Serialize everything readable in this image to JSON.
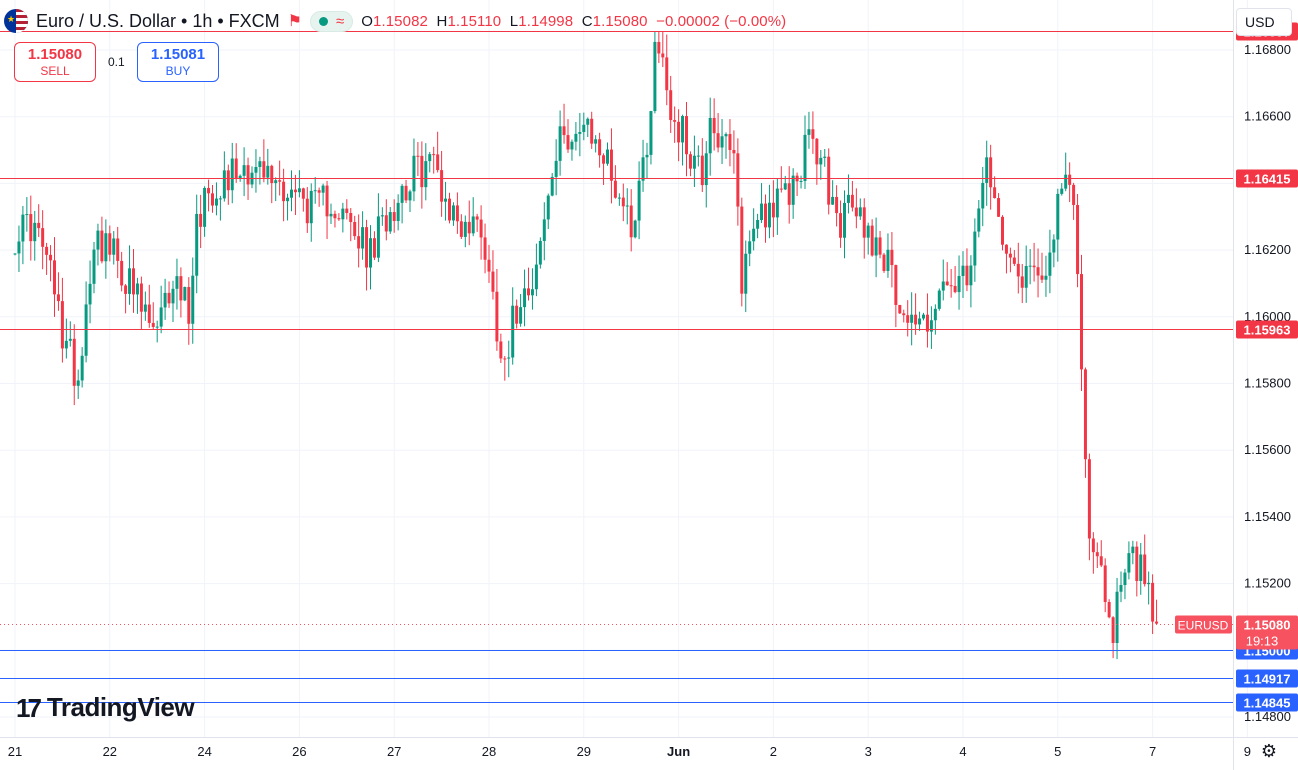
{
  "header": {
    "title": "Euro / U.S. Dollar • 1h • FXCM",
    "flag_icon": "eur-usd-flag-icon",
    "indicator_symbol": "≈",
    "ohlc": {
      "o_label": "O",
      "o_value": "1.15082",
      "h_label": "H",
      "h_value": "1.15110",
      "l_label": "L",
      "l_value": "1.14998",
      "c_label": "C",
      "c_value": "1.15080",
      "change": "−0.00002 (−0.00%)"
    }
  },
  "trade": {
    "sell_price": "1.15080",
    "sell_label": "SELL",
    "buy_price": "1.15081",
    "buy_label": "BUY",
    "spread": "0.1"
  },
  "currency": "USD",
  "logo_text": "TradingView",
  "colors": {
    "up": "#089981",
    "down": "#f23645",
    "resistance": "#f23645",
    "support": "#2962ff",
    "last_price": "#f7525f",
    "grid": "#f0f3fa",
    "axis_text": "#131722"
  },
  "chart_data": {
    "type": "candlestick",
    "title": "Euro / U.S. Dollar • 1h • FXCM",
    "ylim": [
      1.1474,
      1.1695
    ],
    "grid": true,
    "y_ticks": [
      "1.14800",
      "1.15000",
      "1.15200",
      "1.15400",
      "1.15600",
      "1.15800",
      "1.16000",
      "1.16200",
      "1.16400",
      "1.16600",
      "1.16800"
    ],
    "x_ticks": [
      {
        "label": "21",
        "t": 0
      },
      {
        "label": "22",
        "t": 24
      },
      {
        "label": "24",
        "t": 48
      },
      {
        "label": "26",
        "t": 72
      },
      {
        "label": "27",
        "t": 96
      },
      {
        "label": "28",
        "t": 120
      },
      {
        "label": "29",
        "t": 144
      },
      {
        "label": "Jun",
        "t": 168
      },
      {
        "label": "2",
        "t": 192
      },
      {
        "label": "3",
        "t": 216
      },
      {
        "label": "4",
        "t": 240
      },
      {
        "label": "5",
        "t": 264
      },
      {
        "label": "7",
        "t": 288
      },
      {
        "label": "9",
        "t": 312
      }
    ],
    "horizontal_levels": [
      {
        "price": 1.16857,
        "label": "1.16857",
        "kind": "resistance"
      },
      {
        "price": 1.16415,
        "label": "1.16415",
        "kind": "resistance"
      },
      {
        "price": 1.15963,
        "label": "1.15963",
        "kind": "resistance"
      },
      {
        "price": 1.15,
        "label": "1.15000",
        "kind": "support"
      },
      {
        "price": 1.14917,
        "label": "1.14917",
        "kind": "support"
      },
      {
        "price": 1.14845,
        "label": "1.14845",
        "kind": "support"
      }
    ],
    "last_price": {
      "symbol": "EURUSD",
      "price": 1.1508,
      "label": "1.15080",
      "countdown": "19:13"
    },
    "anchors": [
      [
        0,
        1.1625
      ],
      [
        4,
        1.1628
      ],
      [
        8,
        1.1618
      ],
      [
        12,
        1.1595
      ],
      [
        16,
        1.1582
      ],
      [
        20,
        1.1625
      ],
      [
        24,
        1.162
      ],
      [
        28,
        1.1612
      ],
      [
        32,
        1.1602
      ],
      [
        36,
        1.1594
      ],
      [
        40,
        1.1612
      ],
      [
        44,
        1.1603
      ],
      [
        46,
        1.1628
      ],
      [
        48,
        1.1637
      ],
      [
        52,
        1.1641
      ],
      [
        58,
        1.1646
      ],
      [
        64,
        1.1642
      ],
      [
        70,
        1.1638
      ],
      [
        76,
        1.1632
      ],
      [
        80,
        1.1636
      ],
      [
        86,
        1.1624
      ],
      [
        90,
        1.1618
      ],
      [
        94,
        1.1631
      ],
      [
        100,
        1.1642
      ],
      [
        106,
        1.1647
      ],
      [
        110,
        1.1632
      ],
      [
        114,
        1.1627
      ],
      [
        118,
        1.1628
      ],
      [
        122,
        1.1598
      ],
      [
        124,
        1.1588
      ],
      [
        128,
        1.1608
      ],
      [
        132,
        1.1615
      ],
      [
        136,
        1.1642
      ],
      [
        139,
        1.1656
      ],
      [
        144,
        1.1655
      ],
      [
        148,
        1.1651
      ],
      [
        152,
        1.164
      ],
      [
        156,
        1.1628
      ],
      [
        160,
        1.1652
      ],
      [
        162,
        1.1681
      ],
      [
        164,
        1.1678
      ],
      [
        166,
        1.1662
      ],
      [
        170,
        1.1652
      ],
      [
        174,
        1.1643
      ],
      [
        176,
        1.1662
      ],
      [
        178,
        1.1653
      ],
      [
        182,
        1.1646
      ],
      [
        184,
        1.1612
      ],
      [
        188,
        1.1632
      ],
      [
        194,
        1.1634
      ],
      [
        198,
        1.1641
      ],
      [
        200,
        1.1652
      ],
      [
        204,
        1.1648
      ],
      [
        208,
        1.1628
      ],
      [
        212,
        1.1633
      ],
      [
        216,
        1.1626
      ],
      [
        220,
        1.1619
      ],
      [
        222,
        1.1611
      ],
      [
        226,
        1.16
      ],
      [
        230,
        1.1598
      ],
      [
        234,
        1.1606
      ],
      [
        238,
        1.1609
      ],
      [
        242,
        1.161
      ],
      [
        244,
        1.1636
      ],
      [
        246,
        1.1642
      ],
      [
        248,
        1.1633
      ],
      [
        252,
        1.1622
      ],
      [
        254,
        1.1613
      ],
      [
        258,
        1.1615
      ],
      [
        262,
        1.1618
      ],
      [
        264,
        1.1631
      ],
      [
        266,
        1.1641
      ],
      [
        268,
        1.1635
      ],
      [
        270,
        1.1588
      ],
      [
        271,
        1.1562
      ],
      [
        272,
        1.1532
      ],
      [
        274,
        1.1525
      ],
      [
        276,
        1.1518
      ],
      [
        278,
        1.1506
      ],
      [
        280,
        1.1522
      ],
      [
        282,
        1.1532
      ],
      [
        284,
        1.1525
      ],
      [
        286,
        1.1522
      ],
      [
        288,
        1.1512
      ],
      [
        289,
        1.1508
      ]
    ]
  }
}
